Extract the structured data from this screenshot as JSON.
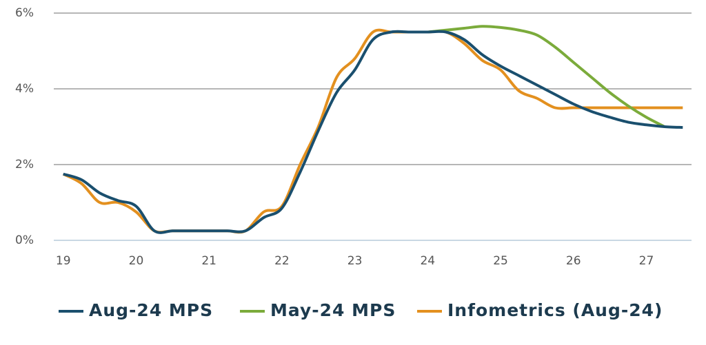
{
  "chart_data": {
    "type": "line",
    "xlim": [
      18.87,
      27.62
    ],
    "xticks": [
      19,
      20,
      21,
      22,
      23,
      24,
      25,
      26,
      27
    ],
    "ylim": [
      0,
      6
    ],
    "yticks": [
      {
        "value": 0,
        "label": "0%"
      },
      {
        "value": 2,
        "label": "2%"
      },
      {
        "value": 4,
        "label": "4%"
      },
      {
        "value": 6,
        "label": "6%"
      }
    ],
    "grid": true,
    "legend": "bottom",
    "series": [
      {
        "name": "Aug-24 MPS",
        "color": "#1a4f6e",
        "x": [
          19,
          19.25,
          19.5,
          19.75,
          20,
          20.25,
          20.5,
          20.75,
          21,
          21.25,
          21.5,
          21.75,
          22,
          22.25,
          22.5,
          22.75,
          23,
          23.25,
          23.5,
          23.75,
          24,
          24.25,
          24.5,
          24.75,
          25,
          25.25,
          25.5,
          25.75,
          26,
          26.25,
          26.5,
          26.75,
          27,
          27.25,
          27.5
        ],
        "values": [
          1.75,
          1.6,
          1.25,
          1.05,
          0.9,
          0.25,
          0.25,
          0.25,
          0.25,
          0.25,
          0.25,
          0.6,
          0.85,
          1.8,
          2.9,
          3.9,
          4.5,
          5.3,
          5.5,
          5.5,
          5.5,
          5.5,
          5.3,
          4.9,
          4.6,
          4.35,
          4.1,
          3.85,
          3.6,
          3.4,
          3.25,
          3.12,
          3.05,
          3.0,
          2.98
        ]
      },
      {
        "name": "May-24 MPS",
        "color": "#7bab3b",
        "x": [
          24,
          24.25,
          24.5,
          24.75,
          25,
          25.25,
          25.5,
          25.75,
          26,
          26.25,
          26.5,
          26.75,
          27,
          27.25
        ],
        "values": [
          5.5,
          5.55,
          5.6,
          5.65,
          5.62,
          5.55,
          5.42,
          5.1,
          4.7,
          4.3,
          3.9,
          3.55,
          3.25,
          3.0
        ]
      },
      {
        "name": "Infometrics (Aug-24)",
        "color": "#e3901f",
        "x": [
          19,
          19.25,
          19.5,
          19.75,
          20,
          20.25,
          20.5,
          20.75,
          21,
          21.25,
          21.5,
          21.75,
          22,
          22.25,
          22.5,
          22.75,
          23,
          23.25,
          23.5,
          23.75,
          24,
          24.25,
          24.5,
          24.75,
          25,
          25.25,
          25.5,
          25.75,
          26,
          26.25,
          26.5,
          26.75,
          27,
          27.25,
          27.5
        ],
        "values": [
          1.75,
          1.5,
          1.0,
          1.0,
          0.75,
          0.25,
          0.25,
          0.25,
          0.25,
          0.25,
          0.25,
          0.75,
          0.9,
          2.0,
          3.0,
          4.3,
          4.8,
          5.5,
          5.5,
          5.5,
          5.5,
          5.5,
          5.2,
          4.75,
          4.5,
          3.95,
          3.75,
          3.5,
          3.5,
          3.5,
          3.5,
          3.5,
          3.5,
          3.5,
          3.5
        ]
      }
    ]
  }
}
